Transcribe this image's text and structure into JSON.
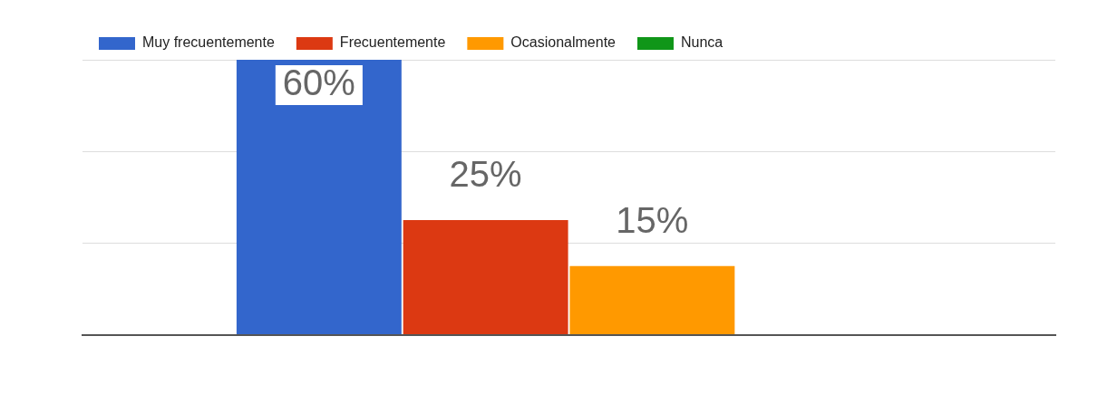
{
  "chart_data": {
    "type": "bar",
    "categories": [
      null
    ],
    "series": [
      {
        "name": "Muy frecuentemente",
        "color": "#3366cc",
        "values": [
          60
        ],
        "value_labels": [
          "60%"
        ]
      },
      {
        "name": "Frecuentemente",
        "color": "#dc3912",
        "values": [
          25
        ],
        "value_labels": [
          "25%"
        ]
      },
      {
        "name": "Ocasionalmente",
        "color": "#ff9900",
        "values": [
          15
        ],
        "value_labels": [
          "15%"
        ]
      },
      {
        "name": "Nunca",
        "color": "#109618",
        "values": [
          0
        ],
        "value_labels": [
          null
        ]
      }
    ],
    "ylim": [
      0,
      60
    ],
    "yticks": [
      {
        "value": 0,
        "label": null
      },
      {
        "value": 20,
        "label": null
      },
      {
        "value": 40,
        "label": null
      },
      {
        "value": 60,
        "label": null
      }
    ],
    "grid": "y",
    "legend": "top left"
  }
}
